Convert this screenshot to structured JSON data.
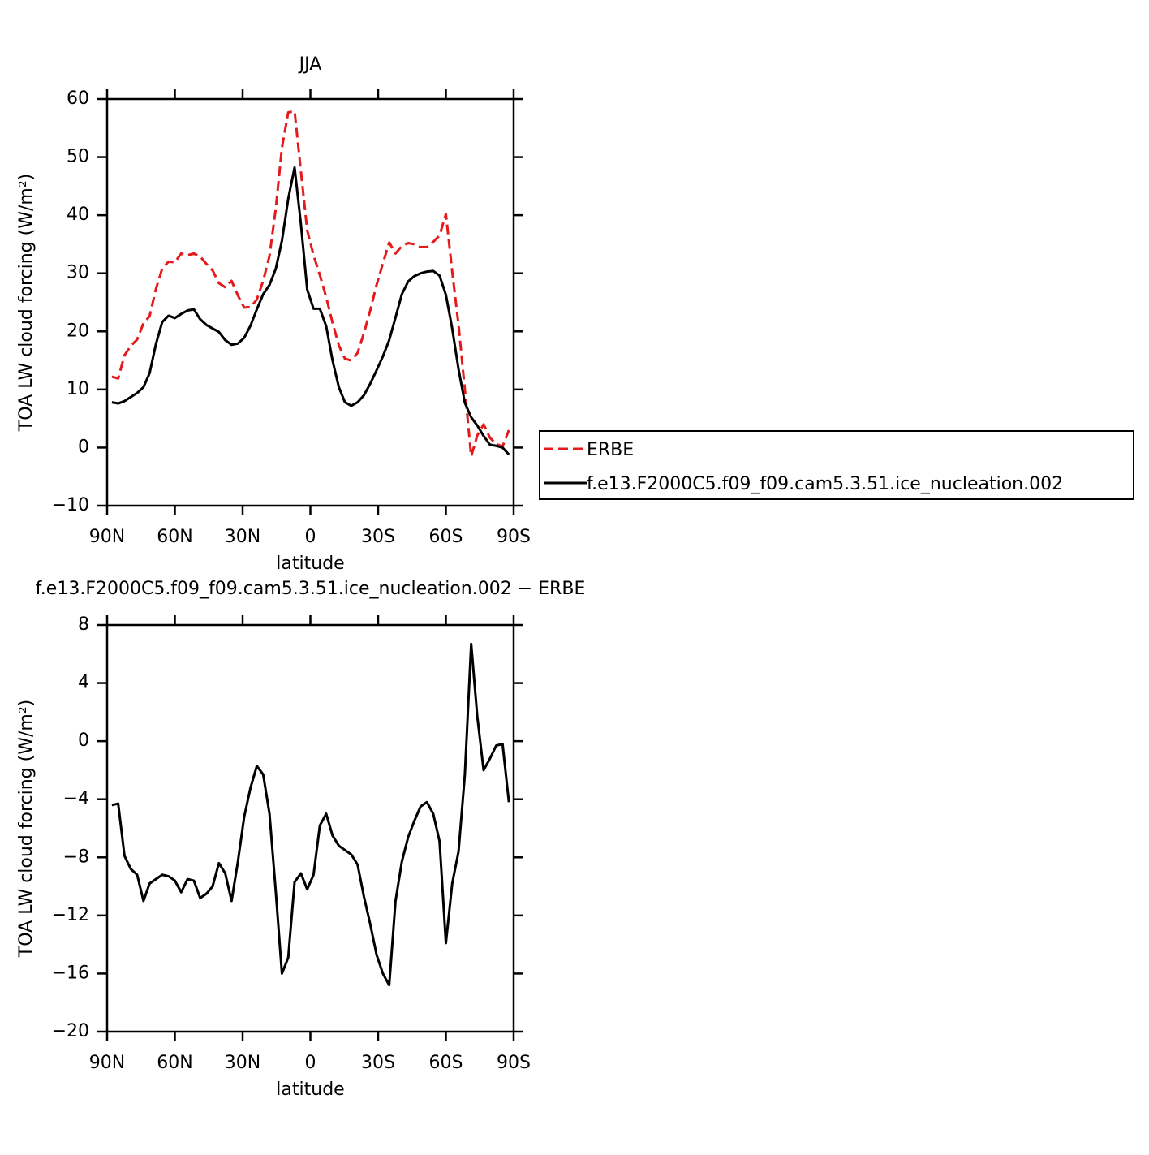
{
  "chart_data": [
    {
      "type": "line",
      "title": "JJA",
      "xlabel": "latitude",
      "ylabel": "TOA LW cloud forcing (W/m²)",
      "x": [
        87.9,
        85.1,
        82.3,
        79.5,
        76.7,
        73.9,
        71.2,
        68.4,
        65.6,
        62.8,
        60.0,
        57.2,
        54.4,
        51.6,
        48.8,
        46.0,
        43.3,
        40.5,
        37.7,
        34.9,
        32.1,
        29.3,
        26.5,
        23.7,
        20.9,
        18.1,
        15.3,
        12.6,
        9.8,
        7.0,
        4.2,
        1.4,
        -1.4,
        -4.2,
        -7.0,
        -9.8,
        -12.6,
        -15.3,
        -18.1,
        -20.9,
        -23.7,
        -26.5,
        -29.3,
        -32.1,
        -34.9,
        -37.7,
        -40.5,
        -43.3,
        -46.0,
        -48.8,
        -51.6,
        -54.4,
        -57.2,
        -60.0,
        -62.8,
        -65.6,
        -68.4,
        -71.2,
        -73.9,
        -76.7,
        -79.5,
        -82.3,
        -85.1,
        -87.9
      ],
      "xlim": [
        90,
        -90
      ],
      "xticks": [
        {
          "value": 90,
          "label": "90N"
        },
        {
          "value": 60,
          "label": "60N"
        },
        {
          "value": 30,
          "label": "30N"
        },
        0,
        {
          "value": -30,
          "label": "30S"
        },
        {
          "value": -60,
          "label": "60S"
        },
        {
          "value": -90,
          "label": "90S"
        }
      ],
      "ylim": [
        -10,
        60
      ],
      "yticks": [
        {
          "value": -10,
          "label": "−10"
        },
        0,
        10,
        20,
        30,
        40,
        50,
        60
      ],
      "legend": "outside-right",
      "series": [
        {
          "name": "ERBE",
          "color": "#e41a1c",
          "linestyle": "dashed",
          "values": [
            12.2,
            11.9,
            15.9,
            17.5,
            18.6,
            21.4,
            22.6,
            27.3,
            30.8,
            32.0,
            31.9,
            33.4,
            33.1,
            33.4,
            32.9,
            31.6,
            30.5,
            28.3,
            27.6,
            28.7,
            26.2,
            24.1,
            24.2,
            25.5,
            28.7,
            33.0,
            41.2,
            51.6,
            57.7,
            57.9,
            47.6,
            37.4,
            33.1,
            29.7,
            25.9,
            21.5,
            17.6,
            15.3,
            15.0,
            16.3,
            19.7,
            23.6,
            28.0,
            31.7,
            35.3,
            33.4,
            34.7,
            35.2,
            35.0,
            34.5,
            34.5,
            35.4,
            36.5,
            40.2,
            30.3,
            21.1,
            10.0,
            -1.5,
            2.1,
            4.0,
            1.7,
            0.6,
            0.2,
            3.0
          ]
        },
        {
          "name": "f.e13.F2000C5.f09_f09.cam5.3.51.ice_nucleation.002",
          "color": "#000000",
          "linestyle": "solid",
          "values": [
            7.8,
            7.6,
            8.0,
            8.7,
            9.4,
            10.4,
            12.8,
            17.8,
            21.6,
            22.7,
            22.3,
            23.0,
            23.6,
            23.8,
            22.1,
            21.1,
            20.5,
            19.9,
            18.5,
            17.7,
            17.9,
            18.9,
            21.0,
            23.8,
            26.4,
            28.0,
            30.8,
            35.6,
            42.8,
            48.2,
            38.5,
            27.2,
            23.9,
            23.9,
            20.9,
            15.0,
            10.4,
            7.8,
            7.2,
            7.8,
            9.0,
            11.0,
            13.3,
            15.7,
            18.5,
            22.4,
            26.4,
            28.6,
            29.5,
            30.0,
            30.3,
            30.4,
            29.6,
            26.3,
            20.5,
            13.5,
            7.7,
            5.2,
            3.8,
            2.0,
            0.5,
            0.3,
            0.0,
            -1.2
          ]
        }
      ]
    },
    {
      "type": "line",
      "title": "f.e13.F2000C5.f09_f09.cam5.3.51.ice_nucleation.002 − ERBE",
      "xlabel": "latitude",
      "ylabel": "TOA LW cloud forcing (W/m²)",
      "x": [
        87.9,
        85.1,
        82.3,
        79.5,
        76.7,
        73.9,
        71.2,
        68.4,
        65.6,
        62.8,
        60.0,
        57.2,
        54.4,
        51.6,
        48.8,
        46.0,
        43.3,
        40.5,
        37.7,
        34.9,
        32.1,
        29.3,
        26.5,
        23.7,
        20.9,
        18.1,
        15.3,
        12.6,
        9.8,
        7.0,
        4.2,
        1.4,
        -1.4,
        -4.2,
        -7.0,
        -9.8,
        -12.6,
        -15.3,
        -18.1,
        -20.9,
        -23.7,
        -26.5,
        -29.3,
        -32.1,
        -34.9,
        -37.7,
        -40.5,
        -43.3,
        -46.0,
        -48.8,
        -51.6,
        -54.4,
        -57.2,
        -60.0,
        -62.8,
        -65.6,
        -68.4,
        -71.2,
        -73.9,
        -76.7,
        -79.5,
        -82.3,
        -85.1,
        -87.9
      ],
      "xlim": [
        90,
        -90
      ],
      "xticks": [
        {
          "value": 90,
          "label": "90N"
        },
        {
          "value": 60,
          "label": "60N"
        },
        {
          "value": 30,
          "label": "30N"
        },
        0,
        {
          "value": -30,
          "label": "30S"
        },
        {
          "value": -60,
          "label": "60S"
        },
        {
          "value": -90,
          "label": "90S"
        }
      ],
      "ylim": [
        -20,
        8
      ],
      "yticks": [
        {
          "value": -20,
          "label": "−20"
        },
        {
          "value": -16,
          "label": "−16"
        },
        {
          "value": -12,
          "label": "−12"
        },
        {
          "value": -8,
          "label": "−8"
        },
        {
          "value": -4,
          "label": "−4"
        },
        0,
        4,
        8
      ],
      "series": [
        {
          "color": "#000000",
          "linestyle": "solid",
          "values": [
            -4.4,
            -4.3,
            -7.9,
            -8.8,
            -9.2,
            -11.0,
            -9.8,
            -9.5,
            -9.2,
            -9.3,
            -9.6,
            -10.4,
            -9.5,
            -9.6,
            -10.8,
            -10.5,
            -10.0,
            -8.4,
            -9.1,
            -11.0,
            -8.3,
            -5.2,
            -3.2,
            -1.7,
            -2.3,
            -5.0,
            -10.4,
            -16.0,
            -14.9,
            -9.7,
            -9.1,
            -10.2,
            -9.2,
            -5.8,
            -5.0,
            -6.5,
            -7.2,
            -7.5,
            -7.8,
            -8.5,
            -10.7,
            -12.6,
            -14.7,
            -16.0,
            -16.8,
            -11.0,
            -8.3,
            -6.6,
            -5.5,
            -4.5,
            -4.2,
            -5.0,
            -6.9,
            -13.9,
            -9.8,
            -7.6,
            -2.3,
            6.7,
            1.7,
            -2.0,
            -1.2,
            -0.3,
            -0.2,
            -4.2
          ]
        }
      ]
    }
  ]
}
